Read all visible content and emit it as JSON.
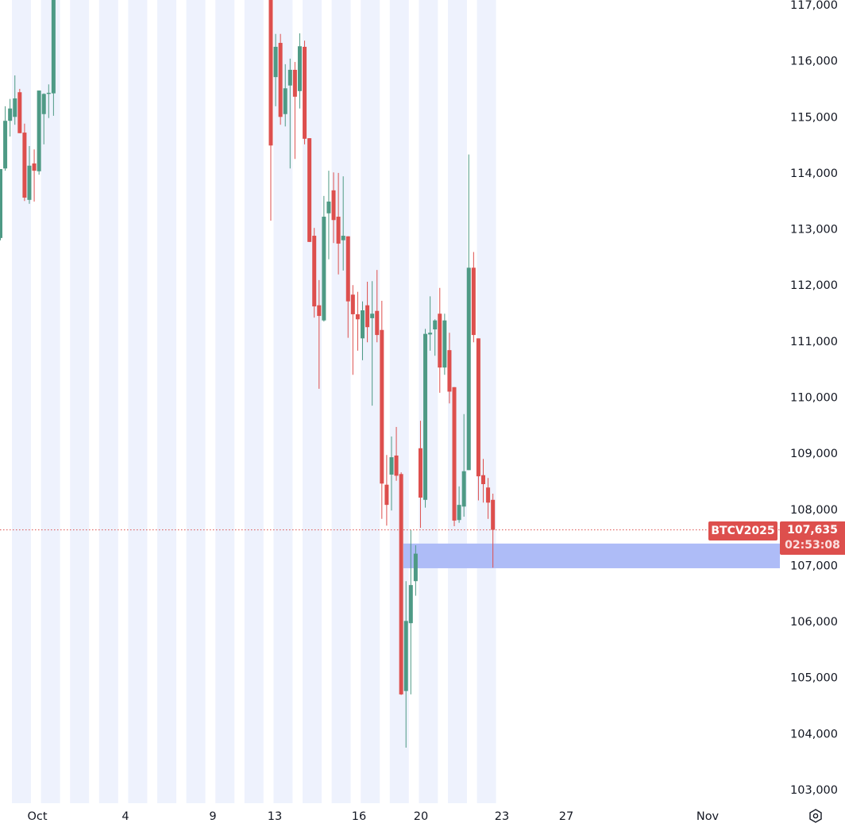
{
  "chart_data": {
    "type": "candlestick",
    "symbol": "BTCV2025",
    "last_price": "107,635",
    "countdown": "02:53:08",
    "y_ticks": [
      "117,000",
      "116,000",
      "115,000",
      "114,000",
      "113,000",
      "112,000",
      "111,000",
      "110,000",
      "109,000",
      "108,000",
      "107,000",
      "106,000",
      "105,000",
      "104,000",
      "103,000"
    ],
    "ylim": [
      103000,
      117000
    ],
    "x_ticks": [
      "Oct",
      "4",
      "9",
      "13",
      "16",
      "20",
      "23",
      "27",
      "Nov"
    ],
    "grid": false,
    "zone": {
      "low": 106950,
      "high": 107390,
      "color": "#aab8f7"
    },
    "colors": {
      "up": "#4e9a85",
      "down": "#dd4f4d",
      "session_band": "#eef2fd",
      "last_price_line": "#dd4f4d"
    },
    "candles_ohlc": [
      [
        112840,
        114070,
        112800,
        114070
      ],
      [
        114080,
        115190,
        114040,
        114930
      ],
      [
        114930,
        115320,
        114650,
        115150
      ],
      [
        115000,
        115740,
        114860,
        115330
      ],
      [
        115440,
        115500,
        114710,
        114710
      ],
      [
        114720,
        114880,
        113500,
        113560
      ],
      [
        113520,
        114480,
        113450,
        114130
      ],
      [
        114170,
        114420,
        113490,
        114040
      ],
      [
        114030,
        115470,
        113970,
        115470
      ],
      [
        115050,
        115420,
        114510,
        115410
      ],
      [
        115410,
        115580,
        114980,
        115430
      ],
      [
        115420,
        117600,
        115020,
        117400
      ],
      null,
      null,
      null,
      null,
      null,
      null,
      null,
      null,
      null,
      null,
      null,
      null,
      null,
      null,
      null,
      null,
      null,
      null,
      null,
      null,
      null,
      null,
      null,
      null,
      null,
      null,
      null,
      null,
      null,
      null,
      null,
      null,
      null,
      null,
      null,
      null,
      null,
      null,
      null,
      null,
      null,
      null,
      null,
      null,
      [
        117300,
        117400,
        113150,
        114490
      ],
      [
        115710,
        116480,
        115190,
        116250
      ],
      [
        116320,
        116480,
        114860,
        115000
      ],
      [
        115050,
        115940,
        114830,
        115510
      ],
      [
        115560,
        116040,
        114080,
        115840
      ],
      [
        115840,
        115980,
        114250,
        115360
      ],
      [
        115460,
        116490,
        115150,
        116260
      ],
      [
        116250,
        116360,
        114510,
        114610
      ],
      [
        114620,
        114620,
        112770,
        112770
      ],
      [
        112880,
        113020,
        111420,
        111620
      ],
      [
        111640,
        112090,
        110150,
        111450
      ],
      [
        111370,
        113590,
        111350,
        113220
      ],
      [
        113280,
        114040,
        112460,
        113490
      ],
      [
        113690,
        114010,
        112750,
        113160
      ],
      [
        113220,
        114000,
        112190,
        112740
      ],
      [
        112800,
        113940,
        112260,
        112880
      ],
      [
        112870,
        112870,
        111060,
        111710
      ],
      [
        111830,
        112000,
        110400,
        111480
      ],
      [
        111480,
        111880,
        110830,
        111390
      ],
      [
        111050,
        111710,
        110660,
        111550
      ],
      [
        111640,
        112060,
        110980,
        111250
      ],
      [
        111410,
        112070,
        109850,
        111490
      ],
      [
        111540,
        112270,
        110980,
        111110
      ],
      [
        111200,
        111720,
        107830,
        108460
      ],
      [
        108440,
        108970,
        107710,
        108080
      ],
      [
        108620,
        109300,
        107980,
        108930
      ],
      [
        108960,
        109470,
        108510,
        108600
      ],
      [
        108630,
        108660,
        104690,
        104700
      ],
      [
        104760,
        106720,
        103750,
        106010
      ],
      [
        105970,
        107630,
        104700,
        106650
      ],
      [
        106720,
        107360,
        106460,
        107210
      ],
      [
        109090,
        109580,
        107670,
        108210
      ],
      [
        108170,
        111220,
        108030,
        111130
      ],
      [
        111120,
        111800,
        110830,
        111150
      ],
      [
        111210,
        111390,
        110740,
        111370
      ],
      [
        111490,
        111950,
        110080,
        110530
      ],
      [
        110530,
        111490,
        110400,
        111370
      ],
      [
        110840,
        111150,
        109890,
        110100
      ],
      [
        110180,
        110180,
        107700,
        107800
      ],
      [
        107810,
        108410,
        107760,
        108080
      ],
      [
        108050,
        109700,
        107870,
        108680
      ],
      [
        108700,
        114330,
        108700,
        112310
      ],
      [
        112310,
        112590,
        110980,
        111110
      ],
      [
        111050,
        111050,
        108160,
        108590
      ],
      [
        108610,
        108900,
        108120,
        108450
      ],
      [
        108390,
        108560,
        107830,
        108120
      ],
      [
        108170,
        108280,
        106960,
        107635
      ]
    ]
  },
  "icons": {
    "settings": "hexagon-settings-icon"
  }
}
